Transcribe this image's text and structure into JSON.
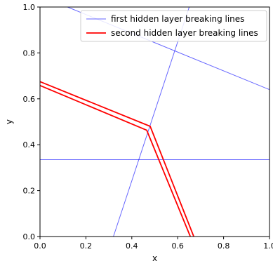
{
  "chart_data": {
    "type": "line",
    "title": "",
    "xlabel": "x",
    "ylabel": "y",
    "xlim": [
      0.0,
      1.0
    ],
    "ylim": [
      0.0,
      1.0
    ],
    "xticks": [
      "0.0",
      "0.2",
      "0.4",
      "0.6",
      "0.8",
      "1.0"
    ],
    "yticks": [
      "0.0",
      "0.2",
      "0.4",
      "0.6",
      "0.8",
      "1.0"
    ],
    "grid": false,
    "legend_position": "top-right",
    "series": [
      {
        "name": "first hidden layer breaking lines",
        "color": "#0000ff",
        "lines": [
          [
            [
              0.12,
              1.0
            ],
            [
              1.0,
              0.64
            ]
          ],
          [
            [
              0.32,
              0.0
            ],
            [
              0.65,
              1.0
            ]
          ],
          [
            [
              0.0,
              0.335
            ],
            [
              1.0,
              0.335
            ]
          ]
        ]
      },
      {
        "name": "second hidden layer breaking lines",
        "color": "#ff0000",
        "lines": [
          [
            [
              0.0,
              0.675
            ],
            [
              0.48,
              0.48
            ],
            [
              0.67,
              0.0
            ]
          ],
          [
            [
              0.0,
              0.658
            ],
            [
              0.465,
              0.463
            ],
            [
              0.655,
              0.0
            ]
          ]
        ]
      }
    ]
  }
}
